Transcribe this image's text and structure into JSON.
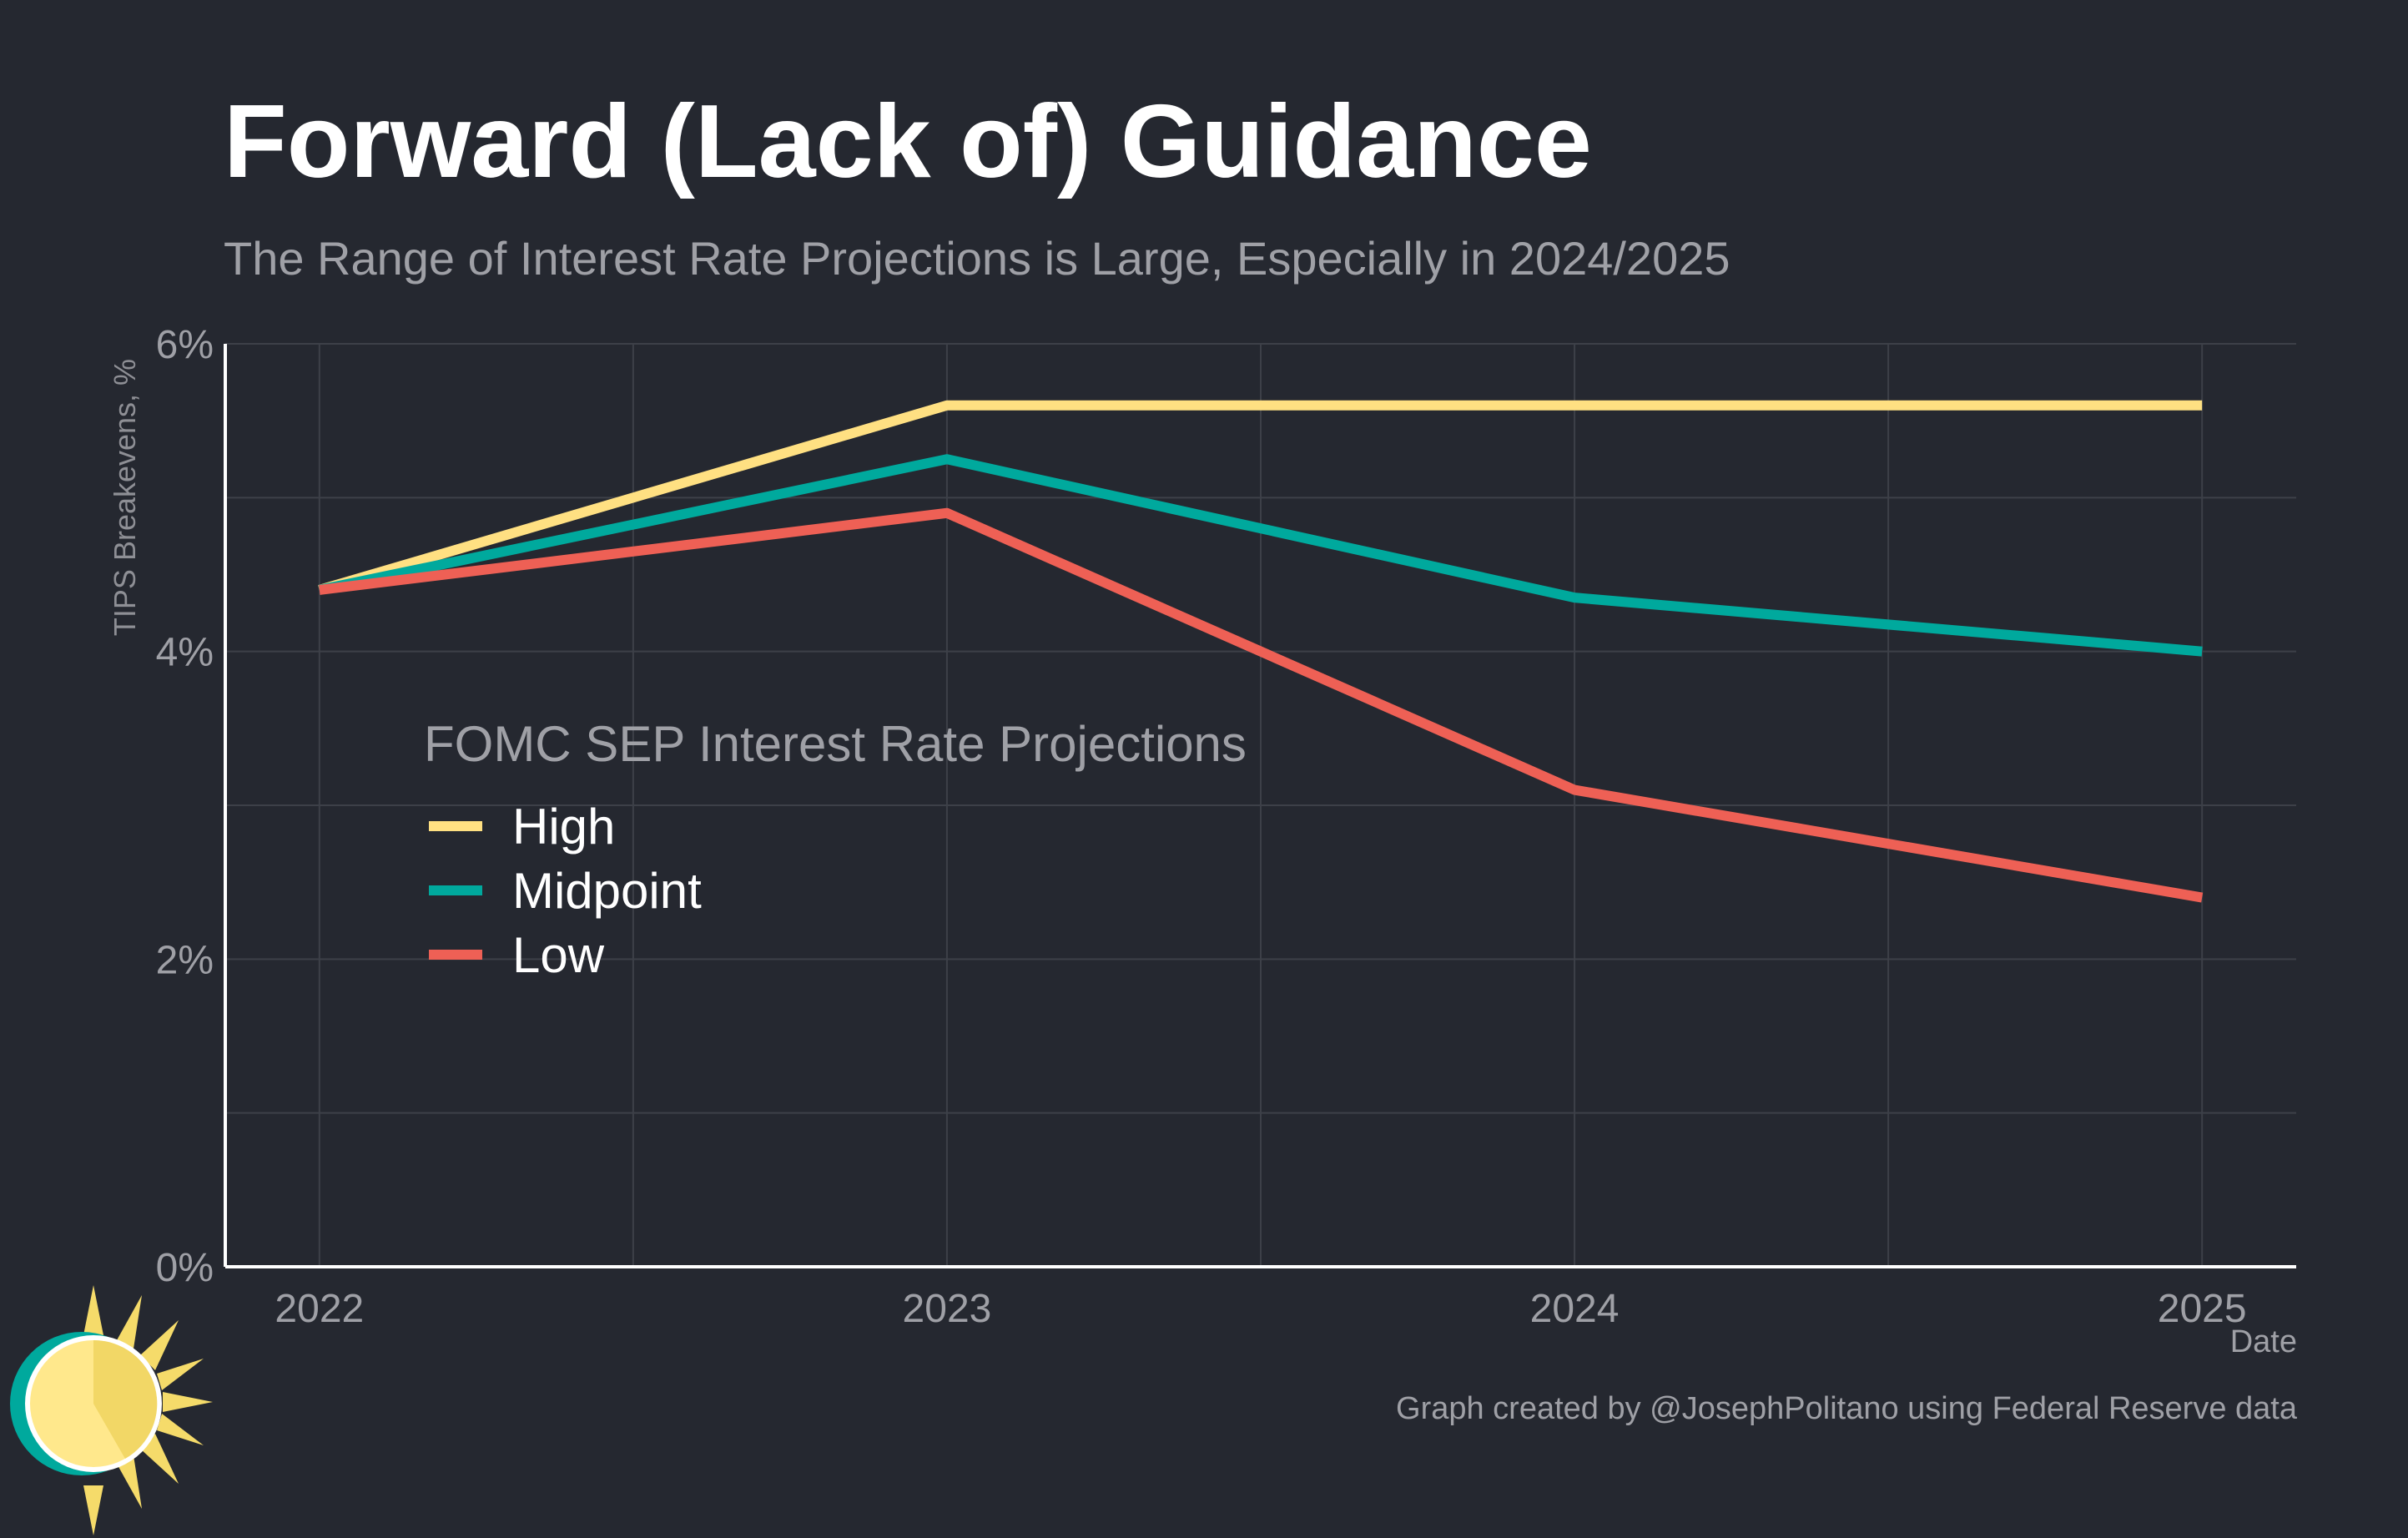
{
  "header": {
    "title": "Forward (Lack of) Guidance",
    "subtitle": "The Range of Interest Rate Projections is Large, Especially in 2024/2025"
  },
  "footer": {
    "credit": "Graph created by @JosephPolitano using Federal Reserve data",
    "logo_icon": "sun-logo-icon"
  },
  "colors": {
    "background": "#252830",
    "grid": "#3d4048",
    "axis": "#ffffff",
    "high": "#FFE082",
    "midpoint": "#00A99D",
    "low": "#EE6055"
  },
  "chart_data": {
    "type": "line",
    "title": "Forward (Lack of) Guidance",
    "subtitle": "The Range of Interest Rate Projections is Large, Especially in 2024/2025",
    "xlabel": "Date",
    "ylabel": "TIPS Breakevens, %",
    "x": [
      2022,
      2023,
      2024,
      2025
    ],
    "x_tick_labels": [
      "2022",
      "2023",
      "2024",
      "2025"
    ],
    "xlim": [
      2021.85,
      2025.15
    ],
    "ylim": [
      0,
      6
    ],
    "y_ticks": [
      0,
      2,
      4,
      6
    ],
    "y_tick_labels": [
      "0%",
      "2%",
      "4%",
      "6%"
    ],
    "grid": true,
    "legend": {
      "title": "FOMC SEP Interest Rate Projections",
      "placement": "center-left"
    },
    "series": [
      {
        "name": "High",
        "color": "#FFE082",
        "values": [
          4.4,
          5.6,
          5.6,
          5.6
        ]
      },
      {
        "name": "Midpoint",
        "color": "#00A99D",
        "values": [
          4.4,
          5.25,
          4.35,
          4.0
        ]
      },
      {
        "name": "Low",
        "color": "#EE6055",
        "values": [
          4.4,
          4.9,
          3.1,
          2.4
        ]
      }
    ]
  }
}
